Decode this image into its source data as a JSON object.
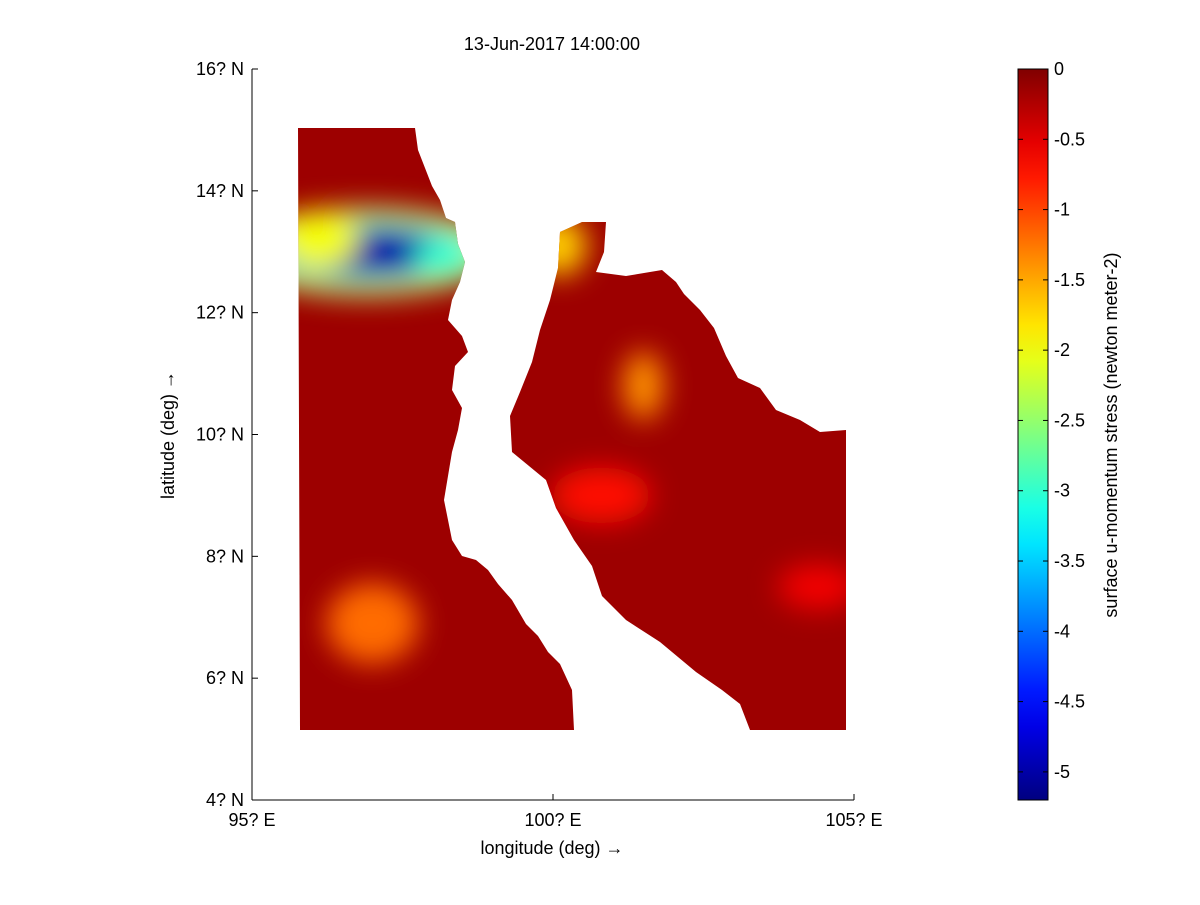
{
  "chart_data": {
    "type": "heatmap",
    "title": "13-Jun-2017 14:00:00",
    "xlabel": "longitude (deg) →",
    "ylabel": "latitude (deg) →",
    "xlim": [
      95,
      105
    ],
    "ylim": [
      4,
      16
    ],
    "x_ticks": [
      95,
      100,
      105
    ],
    "x_tick_labels": [
      "95? E",
      "100? E",
      "105? E"
    ],
    "y_ticks": [
      4,
      6,
      8,
      10,
      12,
      14,
      16
    ],
    "y_tick_labels": [
      "4? N",
      "6? N",
      "8? N",
      "10? N",
      "12? N",
      "14? N",
      "16? N"
    ],
    "colorbar": {
      "label": "surface u-momentum stress (newton meter-2)",
      "range": [
        -5.2,
        0
      ],
      "ticks": [
        0,
        -0.5,
        -1,
        -1.5,
        -2,
        -2.5,
        -3,
        -3.5,
        -4,
        -4.5,
        -5
      ],
      "tick_labels": [
        "0",
        "-0.5",
        "-1",
        "-1.5",
        "-2",
        "-2.5",
        "-3",
        "-3.5",
        "-4",
        "-4.5",
        "-5"
      ],
      "colormap": "jet"
    },
    "data_extent": {
      "lon": [
        95.75,
        104.85
      ],
      "lat": [
        5.15,
        15.0
      ]
    },
    "features": [
      {
        "lon": 96.9,
        "lat": 13.0,
        "value": -5.0
      },
      {
        "lon": 96.1,
        "lat": 13.2,
        "value": -2.0
      },
      {
        "lon": 98.2,
        "lat": 12.9,
        "value": -3.0
      },
      {
        "lon": 100.1,
        "lat": 13.1,
        "value": -1.7
      },
      {
        "lon": 101.5,
        "lat": 10.8,
        "value": -1.4
      },
      {
        "lon": 97.0,
        "lat": 6.9,
        "value": -1.2
      },
      {
        "lon": 100.8,
        "lat": 9.0,
        "value": -0.7
      },
      {
        "lon": 104.4,
        "lat": 7.5,
        "value": -0.6
      }
    ]
  }
}
